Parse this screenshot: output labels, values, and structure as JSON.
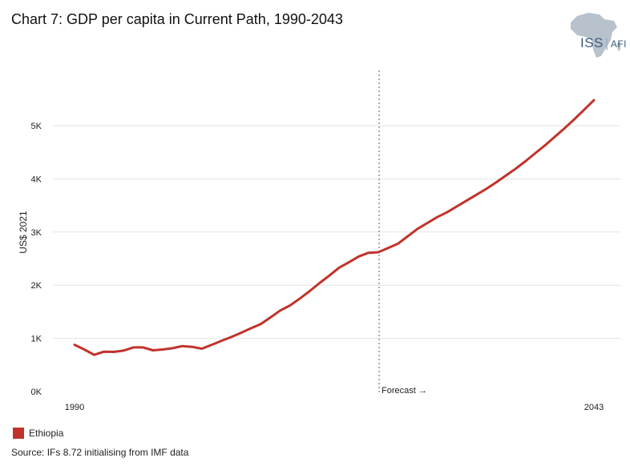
{
  "header": {
    "title": "Chart 7: GDP per capita in Current Path, 1990-2043"
  },
  "logo": {
    "primary": "ISS",
    "secondary": "AFI",
    "icon": "africa-map-icon"
  },
  "chart_data": {
    "type": "line",
    "title": "Chart 7: GDP per capita in Current Path, 1990-2043",
    "xlabel": "",
    "ylabel": "US$ 2021",
    "xlim": [
      1990,
      2043
    ],
    "ylim": [
      0,
      5500
    ],
    "x_tick_labels": [
      "1990",
      "2043"
    ],
    "y_ticks": [
      0,
      1000,
      2000,
      3000,
      4000,
      5000
    ],
    "y_tick_labels": [
      "0K",
      "1K",
      "2K",
      "3K",
      "4K",
      "5K"
    ],
    "grid": true,
    "forecast_marker": {
      "x": 2021,
      "label": "Forecast →"
    },
    "legend_position": "bottom-left",
    "series": [
      {
        "name": "Ethiopia",
        "color": "#c0332b",
        "x": [
          1990,
          1991,
          1992,
          1993,
          1994,
          1995,
          1996,
          1997,
          1998,
          1999,
          2000,
          2001,
          2002,
          2003,
          2004,
          2005,
          2006,
          2007,
          2008,
          2009,
          2010,
          2011,
          2012,
          2013,
          2014,
          2015,
          2016,
          2017,
          2018,
          2019,
          2020,
          2021,
          2022,
          2023,
          2024,
          2025,
          2026,
          2027,
          2028,
          2029,
          2030,
          2031,
          2032,
          2033,
          2034,
          2035,
          2036,
          2037,
          2038,
          2039,
          2040,
          2041,
          2042,
          2043
        ],
        "y": [
          880,
          790,
          690,
          750,
          745,
          770,
          830,
          830,
          775,
          790,
          815,
          855,
          840,
          805,
          880,
          955,
          1025,
          1105,
          1190,
          1270,
          1395,
          1525,
          1620,
          1750,
          1890,
          2040,
          2180,
          2330,
          2430,
          2540,
          2610,
          2620,
          2700,
          2780,
          2920,
          3060,
          3170,
          3280,
          3370,
          3480,
          3590,
          3700,
          3810,
          3930,
          4060,
          4190,
          4330,
          4480,
          4630,
          4790,
          4950,
          5120,
          5300,
          5480
        ]
      }
    ]
  },
  "legend": {
    "items": [
      {
        "label": "Ethiopia",
        "color": "#c0332b"
      }
    ]
  },
  "footer": {
    "source": "Source: IFs 8.72 initialising from IMF data"
  }
}
